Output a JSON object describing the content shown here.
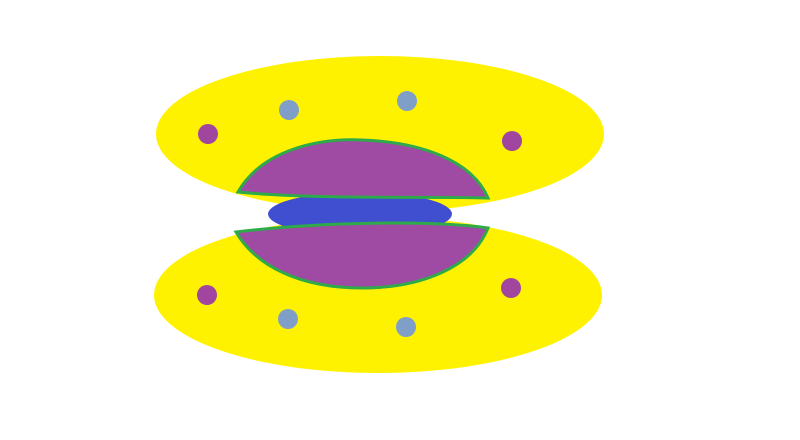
{
  "colors": {
    "background": "#ffffff",
    "shell": "#fff200",
    "body": "#9f4aa3",
    "body_outline": "#2eaa4a",
    "core": "#3f4fcf",
    "dot_purple": "#a0469f",
    "dot_blue": "#7f9fc8"
  },
  "parts": [
    "upper-shell",
    "lower-shell",
    "inner-body",
    "center-core",
    "shell-dots"
  ]
}
